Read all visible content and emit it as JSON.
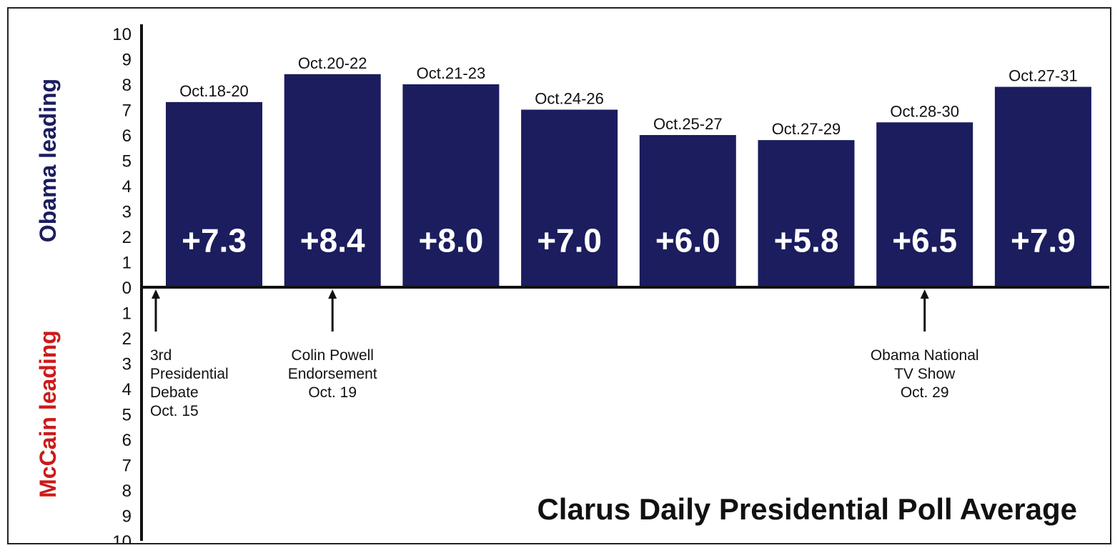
{
  "chart_data": {
    "type": "bar",
    "title": "Clarus Daily Presidential Poll Average",
    "categories": [
      "Oct.18-20",
      "Oct.20-22",
      "Oct.21-23",
      "Oct.24-26",
      "Oct.25-27",
      "Oct.27-29",
      "Oct.28-30",
      "Oct.27-31"
    ],
    "values": [
      7.3,
      8.4,
      8.0,
      7.0,
      6.0,
      5.8,
      6.5,
      7.9
    ],
    "value_labels": [
      "+7.3",
      "+8.4",
      "+8.0",
      "+7.0",
      "+6.0",
      "+5.8",
      "+6.5",
      "+7.9"
    ],
    "ylim": [
      -10,
      10
    ],
    "yticks_upper": [
      "10",
      "9",
      "8",
      "7",
      "6",
      "5",
      "4",
      "3",
      "2",
      "1",
      "0"
    ],
    "yticks_lower": [
      "1",
      "2",
      "3",
      "4",
      "5",
      "6",
      "7",
      "8",
      "9",
      "10"
    ],
    "upper_label": "Obama leading",
    "lower_label": "McCain leading",
    "grid": false,
    "annotations": [
      {
        "at": "before Oct.18-20",
        "lines": [
          "3rd",
          "Presidential",
          "Debate",
          "Oct. 15"
        ]
      },
      {
        "at": "Oct.20-22",
        "lines": [
          "Colin Powell",
          "Endorsement",
          "Oct. 19"
        ]
      },
      {
        "at": "Oct.28-30",
        "lines": [
          "Obama National",
          "TV Show",
          "Oct. 29"
        ]
      }
    ],
    "colors": {
      "bar": "#1b1d5e",
      "obama": "#1b1d5e",
      "mccain": "#cc1a1a",
      "axis": "#111111"
    }
  }
}
